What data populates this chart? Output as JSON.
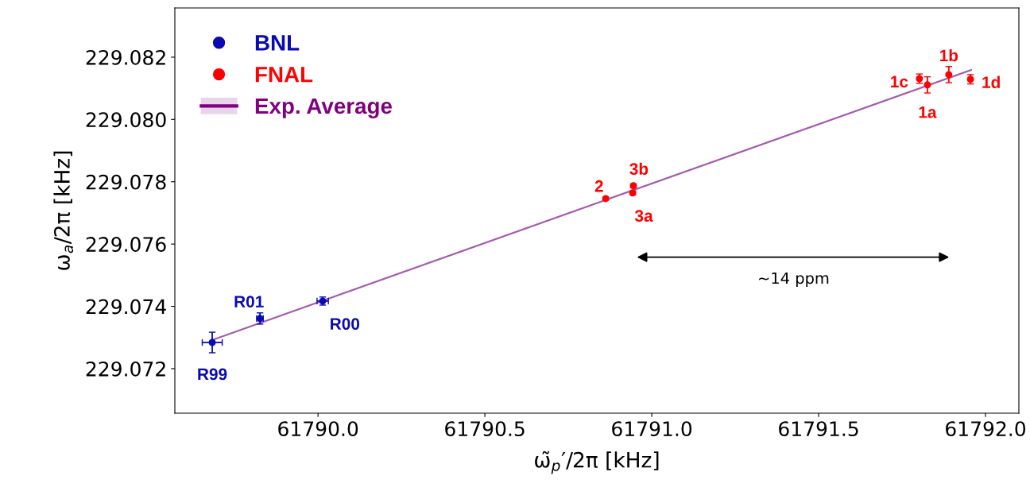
{
  "chart_data": {
    "type": "scatter",
    "xlabel": "ω̃$_{p}$′/2π [kHz]",
    "ylabel": "ω$_{a}$/2π [kHz]",
    "xlim": [
      61789.571,
      61792.1
    ],
    "xticks": [
      {
        "value": 61790.0,
        "label": "61790.0"
      },
      {
        "value": 61790.5,
        "label": "61790.5"
      },
      {
        "value": 61791.0,
        "label": "61791.0"
      },
      {
        "value": 61791.5,
        "label": "61791.5"
      },
      {
        "value": 61792.0,
        "label": "61792.0"
      }
    ],
    "ylim": [
      229.07057,
      229.08358
    ],
    "yticks": [
      {
        "value": 229.072,
        "label": "229.072"
      },
      {
        "value": 229.074,
        "label": "229.074"
      },
      {
        "value": 229.076,
        "label": "229.076"
      },
      {
        "value": 229.078,
        "label": "229.078"
      },
      {
        "value": 229.08,
        "label": "229.080"
      },
      {
        "value": 229.082,
        "label": "229.082"
      }
    ],
    "grid": false,
    "legend": "top left",
    "series": [
      {
        "name": "BNL",
        "marker": "circle",
        "color": "#0a0ab4",
        "x": [
          61789.683,
          61789.826,
          61790.014
        ],
        "values": [
          229.07284,
          229.07361,
          229.07417
        ],
        "errors": [
          0.00033,
          0.00018,
          0.00013
        ],
        "xerrors": [
          0.03,
          0.01,
          0.017
        ]
      },
      {
        "name": "FNAL",
        "marker": "circle",
        "color": "#ff0000",
        "x": [
          61790.862,
          61790.943,
          61790.945,
          61791.826,
          61791.89,
          61791.802,
          61791.955
        ],
        "values": [
          229.07746,
          229.07764,
          229.07787,
          229.08111,
          229.08144,
          229.08131,
          229.08129
        ],
        "errors": [
          5e-05,
          6e-05,
          6e-05,
          0.00026,
          0.00026,
          0.00015,
          0.00015
        ]
      },
      {
        "name": "Exp. Average",
        "type": "line",
        "color": "#a55aae",
        "x": [
          61789.683,
          61791.957
        ],
        "values": [
          229.07292,
          229.08159
        ],
        "lower": [
          229.07289,
          229.08156
        ],
        "upper": [
          229.07295,
          229.08162
        ]
      }
    ],
    "annotations": [
      {
        "text": "R99",
        "x": 61789.683,
        "y": 229.07284
      },
      {
        "text": "R01",
        "x": 61789.826,
        "y": 229.07361
      },
      {
        "text": "R00",
        "x": 61790.014,
        "y": 229.07417
      },
      {
        "text": "2",
        "x": 61790.862,
        "y": 229.07746
      },
      {
        "text": "3a",
        "x": 61790.943,
        "y": 229.07764
      },
      {
        "text": "3b",
        "x": 61790.945,
        "y": 229.07787
      },
      {
        "text": "1a",
        "x": 61791.826,
        "y": 229.08111
      },
      {
        "text": "1b",
        "x": 61791.89,
        "y": 229.08144
      },
      {
        "text": "1c",
        "x": 61791.802,
        "y": 229.08131
      },
      {
        "text": "1d",
        "x": 61791.955,
        "y": 229.08129
      },
      "~14 ppm"
    ]
  }
}
